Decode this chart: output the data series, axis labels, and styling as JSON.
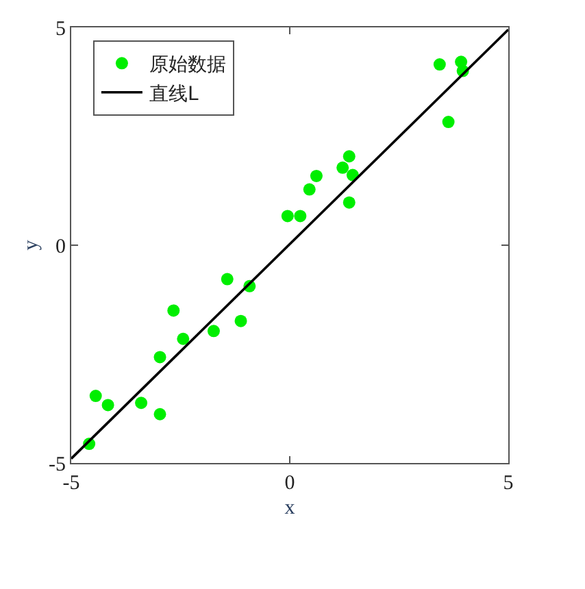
{
  "chart_data": {
    "type": "scatter",
    "xlabel": "x",
    "ylabel": "y",
    "xlim": [
      -5,
      5
    ],
    "ylim": [
      -5,
      5
    ],
    "xticks": [
      -5,
      0,
      5
    ],
    "yticks": [
      -5,
      0,
      5
    ],
    "grid": false,
    "legend": "top left",
    "series": [
      {
        "name": "原始数据",
        "marker": "circle",
        "color": "#00ee00",
        "x": [
          -4.59,
          -4.44,
          -4.16,
          -3.4,
          -2.97,
          -2.97,
          -2.66,
          -2.44,
          -1.74,
          -1.43,
          -1.12,
          -0.92,
          -0.05,
          0.24,
          0.45,
          0.61,
          1.21,
          1.36,
          1.44,
          1.36,
          3.43,
          3.63,
          3.92,
          3.96
        ],
        "values": [
          -4.56,
          -3.46,
          -3.67,
          -3.62,
          -3.88,
          -2.57,
          -1.5,
          -2.15,
          -1.97,
          -0.78,
          -1.74,
          -0.94,
          0.67,
          0.67,
          1.28,
          1.59,
          1.78,
          2.04,
          1.61,
          0.98,
          4.15,
          2.83,
          4.21,
          4.0
        ]
      },
      {
        "name": "直线L",
        "type": "line",
        "marker": "none",
        "line_style": "solid",
        "color": "#000000",
        "x": [
          -5,
          5
        ],
        "values": [
          -4.9,
          4.95
        ]
      }
    ]
  }
}
